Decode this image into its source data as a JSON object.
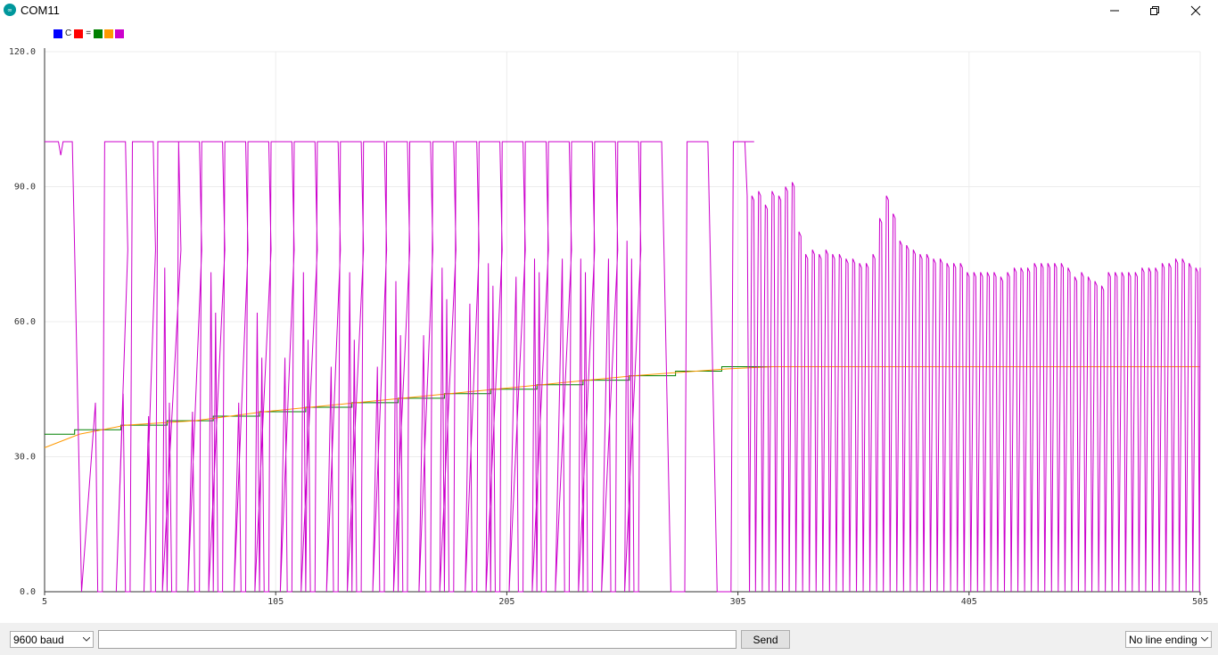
{
  "window": {
    "title": "COM11"
  },
  "legend": [
    {
      "color": "#0000ff",
      "label": ""
    },
    {
      "color": "",
      "label": "C"
    },
    {
      "color": "#ff0000",
      "label": ""
    },
    {
      "color": "",
      "label": "="
    },
    {
      "color": "#008000",
      "label": ""
    },
    {
      "color": "#ff9900",
      "label": ""
    },
    {
      "color": "#cc00cc",
      "label": ""
    }
  ],
  "footer": {
    "baud": "9600 baud",
    "message_value": "",
    "send_label": "Send",
    "line_ending": "No line ending"
  },
  "chart_data": {
    "type": "line",
    "ylim": [
      0,
      120
    ],
    "xlim": [
      5,
      505
    ],
    "y_ticks": [
      "0.0",
      "30.0",
      "60.0",
      "90.0",
      "120.0"
    ],
    "x_ticks": [
      "5",
      "105",
      "205",
      "305",
      "405",
      "505"
    ],
    "grid": true,
    "colors": {
      "setpoint": "#008000",
      "temperature": "#ff9900",
      "output": "#cc00cc",
      "blue": "#0000ff",
      "red": "#ff0000"
    },
    "setpoint_steps": [
      {
        "x_start": 5,
        "y": 35
      },
      {
        "x_start": 18,
        "y": 36
      },
      {
        "x_start": 38,
        "y": 37
      },
      {
        "x_start": 58,
        "y": 38
      },
      {
        "x_start": 78,
        "y": 39
      },
      {
        "x_start": 98,
        "y": 40
      },
      {
        "x_start": 118,
        "y": 41
      },
      {
        "x_start": 138,
        "y": 42
      },
      {
        "x_start": 158,
        "y": 43
      },
      {
        "x_start": 178,
        "y": 44
      },
      {
        "x_start": 198,
        "y": 45
      },
      {
        "x_start": 218,
        "y": 46
      },
      {
        "x_start": 238,
        "y": 47
      },
      {
        "x_start": 258,
        "y": 48
      },
      {
        "x_start": 278,
        "y": 49
      },
      {
        "x_start": 298,
        "y": 50
      }
    ],
    "temperature": [
      [
        5,
        32
      ],
      [
        20,
        35
      ],
      [
        40,
        37
      ],
      [
        70,
        38
      ],
      [
        100,
        40
      ],
      [
        140,
        42
      ],
      [
        180,
        44
      ],
      [
        220,
        46
      ],
      [
        260,
        48
      ],
      [
        300,
        49.5
      ],
      [
        320,
        50
      ],
      [
        505,
        50
      ]
    ],
    "output_pulses": [
      {
        "x1": 21,
        "x2": 27,
        "min": 0,
        "hiB": 42
      },
      {
        "x1": 36,
        "x2": 39,
        "min": 0,
        "hiB": 44
      },
      {
        "x1": 48,
        "x2": 50,
        "min": 0,
        "hiB": 39
      },
      {
        "x1": 56,
        "x2": 59,
        "min": 0,
        "hiA": 72,
        "hiB": 42
      },
      {
        "x1": 67,
        "x2": 69,
        "min": 0,
        "hiB": 40
      },
      {
        "x1": 76,
        "x2": 79,
        "min": 0,
        "hiA": 71,
        "hiB": 62
      },
      {
        "x1": 87,
        "x2": 89,
        "min": 0,
        "hiB": 42
      },
      {
        "x1": 96,
        "x2": 99,
        "min": 0,
        "hiA": 62,
        "hiB": 52
      },
      {
        "x1": 107,
        "x2": 109,
        "min": 0,
        "hiB": 52
      },
      {
        "x1": 116,
        "x2": 119,
        "min": 0,
        "hiA": 71,
        "hiB": 56
      },
      {
        "x1": 127,
        "x2": 129,
        "min": 0,
        "hiB": 50
      },
      {
        "x1": 136,
        "x2": 139,
        "min": 0,
        "hiA": 71,
        "hiB": 56
      },
      {
        "x1": 147,
        "x2": 149,
        "min": 0,
        "hiB": 50
      },
      {
        "x1": 156,
        "x2": 159,
        "min": 0,
        "hiA": 69,
        "hiB": 57
      },
      {
        "x1": 167,
        "x2": 169,
        "min": 0,
        "hiB": 57
      },
      {
        "x1": 176,
        "x2": 179,
        "min": 0,
        "hiA": 72,
        "hiB": 65
      },
      {
        "x1": 187,
        "x2": 189,
        "min": 0,
        "hiB": 64
      },
      {
        "x1": 196,
        "x2": 199,
        "min": 0,
        "hiA": 73,
        "hiB": 68
      },
      {
        "x1": 206,
        "x2": 209,
        "min": 0,
        "hiB": 70
      },
      {
        "x1": 216,
        "x2": 219,
        "min": 0,
        "hiA": 74,
        "hiB": 71
      },
      {
        "x1": 226,
        "x2": 229,
        "min": 0,
        "hiB": 74
      },
      {
        "x1": 236,
        "x2": 239,
        "min": 0,
        "hiA": 74,
        "hiB": 71
      },
      {
        "x1": 246,
        "x2": 249,
        "min": 0,
        "hiB": 74
      },
      {
        "x1": 256,
        "x2": 259,
        "min": 0,
        "hiA": 78,
        "hiB": 74
      },
      {
        "x1": 276,
        "x2": 279,
        "min": 0,
        "hiB": 0
      },
      {
        "x1": 296,
        "x2": 299,
        "min": 0,
        "hiB": 0
      }
    ],
    "output_tail": [
      88,
      89,
      86,
      89,
      88,
      90,
      91,
      80,
      75,
      76,
      75,
      76,
      75,
      75,
      74,
      74,
      73,
      73,
      75,
      83,
      88,
      84,
      78,
      77,
      76,
      75,
      75,
      74,
      74,
      73,
      73,
      73,
      71,
      71,
      71,
      71,
      71,
      70,
      71,
      72,
      72,
      72,
      73,
      73,
      73,
      73,
      73,
      72,
      70,
      71,
      70,
      69,
      68,
      71,
      71,
      71,
      71,
      71,
      72,
      72,
      72,
      73,
      73,
      74,
      74,
      73,
      72
    ]
  }
}
